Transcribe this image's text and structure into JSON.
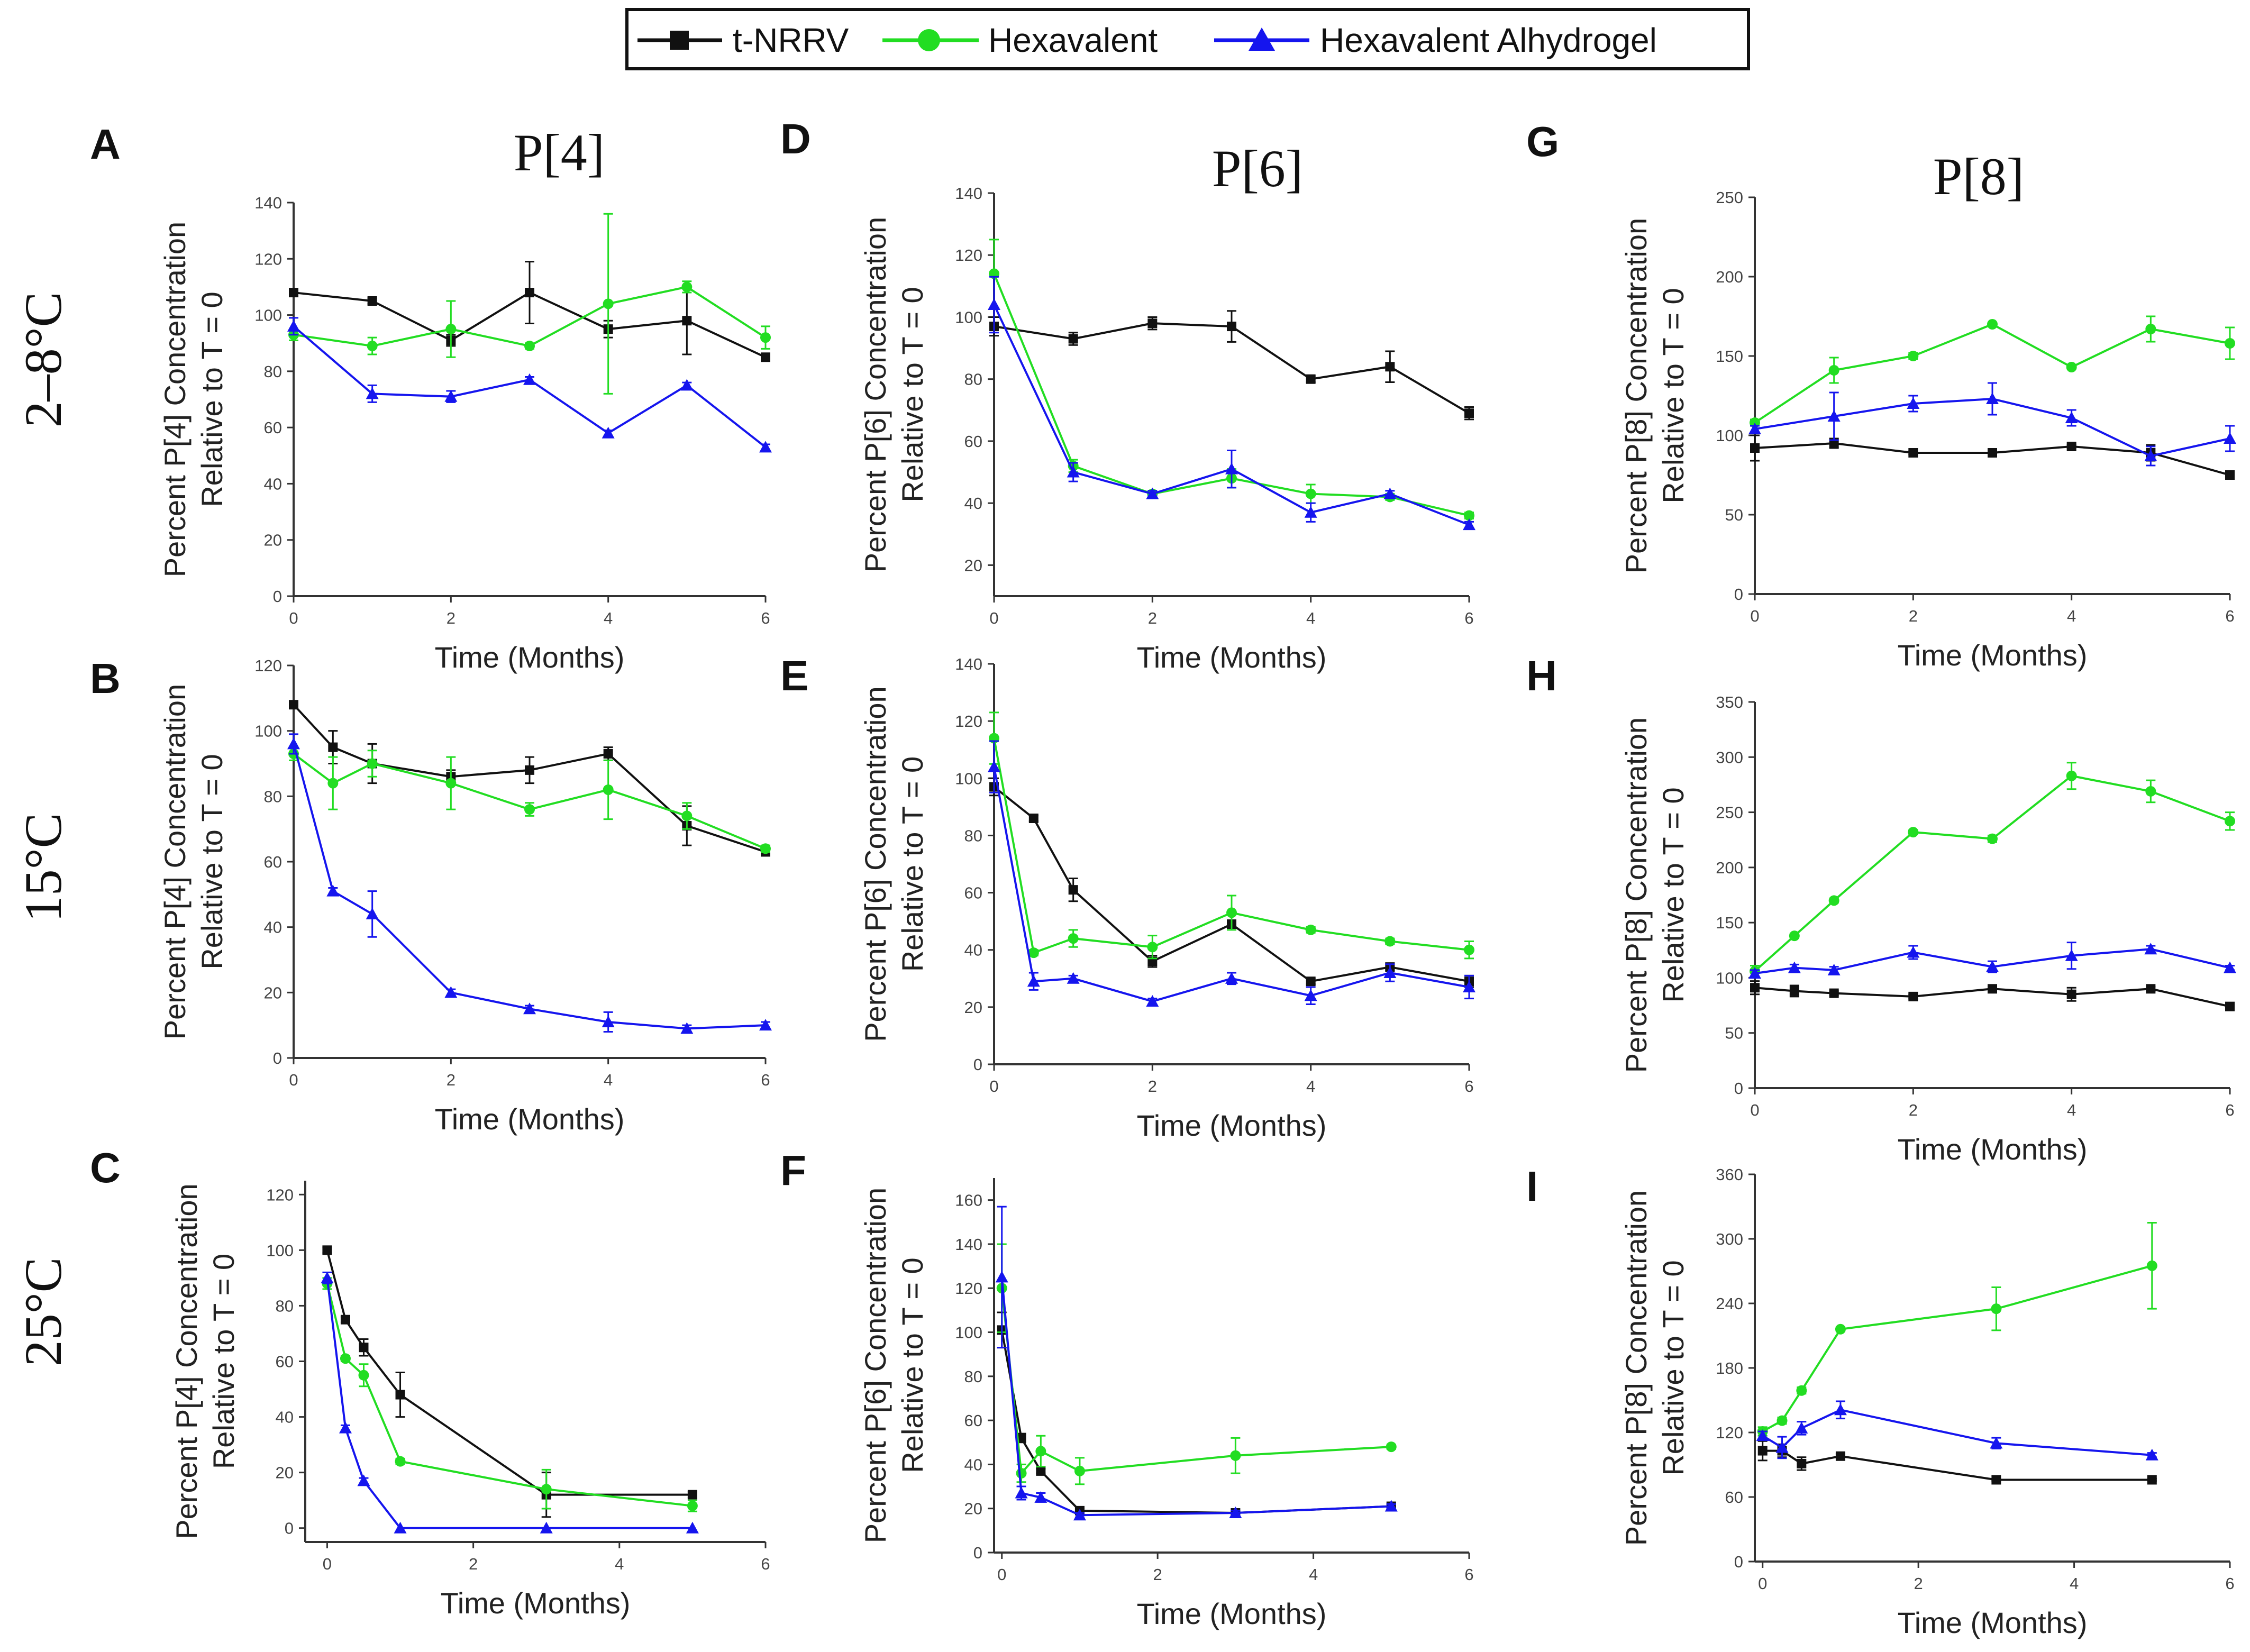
{
  "legend": {
    "items": [
      {
        "name": "t-NRRV",
        "color": "#111111",
        "marker": "square"
      },
      {
        "name": "Hexavalent",
        "color": "#22dd22",
        "marker": "circle"
      },
      {
        "name": "Hexavalent Alhydrogel",
        "color": "#1515ee",
        "marker": "triangle"
      }
    ]
  },
  "column_titles": [
    "P[4]",
    "P[6]",
    "P[8]"
  ],
  "row_labels": [
    "2–8°C",
    "15°C",
    "25°C"
  ],
  "chart_data": [
    {
      "panel": "A",
      "type": "line",
      "title": "P[4]",
      "xlabel": "Time (Months)",
      "ylabel_lines": [
        "Percent P[4] Concentration",
        "Relative to T = 0"
      ],
      "xlim": [
        0,
        6
      ],
      "xticks": [
        0,
        2,
        4,
        6
      ],
      "ylim": [
        0,
        140
      ],
      "yticks": [
        0,
        20,
        40,
        60,
        80,
        100,
        120,
        140
      ],
      "series": [
        {
          "name": "t-NRRV",
          "x": [
            0,
            1,
            2,
            3,
            4,
            5,
            6
          ],
          "y": [
            108,
            105,
            91,
            108,
            95,
            98,
            85
          ],
          "err": [
            1,
            1,
            2,
            11,
            3,
            12,
            1
          ]
        },
        {
          "name": "Hexavalent",
          "x": [
            0,
            1,
            2,
            3,
            4,
            5,
            6
          ],
          "y": [
            93,
            89,
            95,
            89,
            104,
            110,
            92
          ],
          "err": [
            2,
            3,
            10,
            1,
            32,
            2,
            4
          ]
        },
        {
          "name": "Hexavalent Alhydrogel",
          "x": [
            0,
            1,
            2,
            3,
            4,
            5,
            6
          ],
          "y": [
            96,
            72,
            71,
            77,
            58,
            75,
            53
          ],
          "err": [
            3,
            3,
            2,
            1,
            1,
            1,
            1
          ]
        }
      ]
    },
    {
      "panel": "B",
      "type": "line",
      "xlabel": "Time (Months)",
      "ylabel_lines": [
        "Percent P[4] Concentration",
        "Relative to T = 0"
      ],
      "xlim": [
        0,
        6
      ],
      "xticks": [
        0,
        2,
        4,
        6
      ],
      "ylim": [
        0,
        120
      ],
      "yticks": [
        0,
        20,
        40,
        60,
        80,
        100,
        120
      ],
      "series": [
        {
          "name": "t-NRRV",
          "x": [
            0,
            0.5,
            1,
            2,
            3,
            4,
            5,
            6
          ],
          "y": [
            108,
            95,
            90,
            86,
            88,
            93,
            71,
            63
          ],
          "err": [
            1,
            5,
            6,
            2,
            4,
            2,
            6,
            1
          ]
        },
        {
          "name": "Hexavalent",
          "x": [
            0,
            0.5,
            1,
            2,
            3,
            4,
            5,
            6
          ],
          "y": [
            93,
            84,
            90,
            84,
            76,
            82,
            74,
            64
          ],
          "err": [
            2,
            8,
            4,
            8,
            2,
            9,
            4,
            1
          ]
        },
        {
          "name": "Hexavalent Alhydrogel",
          "x": [
            0,
            0.5,
            1,
            2,
            3,
            4,
            5,
            6
          ],
          "y": [
            96,
            51,
            44,
            20,
            15,
            11,
            9,
            10
          ],
          "err": [
            3,
            1,
            7,
            1,
            1,
            3,
            1,
            1
          ]
        }
      ]
    },
    {
      "panel": "C",
      "type": "line",
      "xlabel": "Time (Months)",
      "ylabel_lines": [
        "Percent P[4] Concentration",
        "Relative to T = 0"
      ],
      "xlim": [
        -0.3,
        6
      ],
      "xticks": [
        0,
        2,
        4,
        6
      ],
      "ylim": [
        -5,
        125
      ],
      "yticks": [
        0,
        20,
        40,
        60,
        80,
        100,
        120
      ],
      "series": [
        {
          "name": "t-NRRV",
          "x": [
            0,
            0.25,
            0.5,
            1,
            3,
            5
          ],
          "y": [
            100,
            75,
            65,
            48,
            12,
            12
          ],
          "err": [
            1,
            1,
            3,
            8,
            8,
            1
          ]
        },
        {
          "name": "Hexavalent",
          "x": [
            0,
            0.25,
            0.5,
            1,
            3,
            5
          ],
          "y": [
            88,
            61,
            55,
            24,
            14,
            8
          ],
          "err": [
            2,
            1,
            4,
            1,
            7,
            2
          ]
        },
        {
          "name": "Hexavalent Alhydrogel",
          "x": [
            0,
            0.25,
            0.5,
            1,
            3,
            5
          ],
          "y": [
            90,
            36,
            17,
            0,
            0,
            0
          ],
          "err": [
            2,
            1,
            1,
            0,
            0,
            0
          ]
        }
      ]
    },
    {
      "panel": "D",
      "type": "line",
      "title": "P[6]",
      "xlabel": "Time (Months)",
      "ylabel_lines": [
        "Percent P[6] Concentration",
        "Relative to T = 0"
      ],
      "xlim": [
        0,
        6
      ],
      "xticks": [
        0,
        2,
        4,
        6
      ],
      "ylim": [
        10,
        140
      ],
      "yticks": [
        20,
        40,
        60,
        80,
        100,
        120,
        140
      ],
      "series": [
        {
          "name": "t-NRRV",
          "x": [
            0,
            1,
            2,
            3,
            4,
            5,
            6
          ],
          "y": [
            97,
            93,
            98,
            97,
            80,
            84,
            69
          ],
          "err": [
            3,
            2,
            2,
            5,
            1,
            5,
            2
          ]
        },
        {
          "name": "Hexavalent",
          "x": [
            0,
            1,
            2,
            3,
            4,
            5,
            6
          ],
          "y": [
            114,
            52,
            43,
            48,
            43,
            42,
            36
          ],
          "err": [
            11,
            2,
            1,
            3,
            3,
            1,
            1
          ]
        },
        {
          "name": "Hexavalent Alhydrogel",
          "x": [
            0,
            1,
            2,
            3,
            4,
            5,
            6
          ],
          "y": [
            104,
            50,
            43,
            51,
            37,
            43,
            33
          ],
          "err": [
            9,
            3,
            1,
            6,
            3,
            1,
            1
          ]
        }
      ]
    },
    {
      "panel": "E",
      "type": "line",
      "xlabel": "Time (Months)",
      "ylabel_lines": [
        "Percent P[6] Concentration",
        "Relative to T = 0"
      ],
      "xlim": [
        0,
        6
      ],
      "xticks": [
        0,
        2,
        4,
        6
      ],
      "ylim": [
        0,
        140
      ],
      "yticks": [
        0,
        20,
        40,
        60,
        80,
        100,
        120,
        140
      ],
      "series": [
        {
          "name": "t-NRRV",
          "x": [
            0,
            0.5,
            1,
            2,
            3,
            4,
            5,
            6
          ],
          "y": [
            97,
            86,
            61,
            36,
            49,
            29,
            34,
            29
          ],
          "err": [
            3,
            1,
            4,
            2,
            1,
            1,
            1,
            2
          ]
        },
        {
          "name": "Hexavalent",
          "x": [
            0,
            0.5,
            1,
            2,
            3,
            4,
            5,
            6
          ],
          "y": [
            114,
            39,
            44,
            41,
            53,
            47,
            43,
            40
          ],
          "err": [
            9,
            1,
            3,
            4,
            6,
            1,
            1,
            3
          ]
        },
        {
          "name": "Hexavalent Alhydrogel",
          "x": [
            0,
            0.5,
            1,
            2,
            3,
            4,
            5,
            6
          ],
          "y": [
            104,
            29,
            30,
            22,
            30,
            24,
            32,
            27
          ],
          "err": [
            9,
            3,
            1,
            1,
            2,
            3,
            3,
            4
          ]
        }
      ]
    },
    {
      "panel": "F",
      "type": "line",
      "xlabel": "Time (Months)",
      "ylabel_lines": [
        "Percent P[6] Concentration",
        "Relative to T = 0"
      ],
      "xlim": [
        -0.1,
        6
      ],
      "xticks": [
        0,
        2,
        4,
        6
      ],
      "ylim": [
        0,
        170
      ],
      "yticks": [
        0,
        20,
        40,
        60,
        80,
        100,
        120,
        140,
        160
      ],
      "series": [
        {
          "name": "t-NRRV",
          "x": [
            0,
            0.25,
            0.5,
            1,
            3,
            5
          ],
          "y": [
            101,
            52,
            37,
            19,
            18,
            21
          ],
          "err": [
            8,
            2,
            1,
            1,
            1,
            1
          ]
        },
        {
          "name": "Hexavalent",
          "x": [
            0,
            0.25,
            0.5,
            1,
            3,
            5
          ],
          "y": [
            120,
            36,
            46,
            37,
            44,
            48
          ],
          "err": [
            20,
            4,
            7,
            6,
            8,
            1
          ]
        },
        {
          "name": "Hexavalent Alhydrogel",
          "x": [
            0,
            0.25,
            0.5,
            1,
            3,
            5
          ],
          "y": [
            125,
            27,
            25,
            17,
            18,
            21
          ],
          "err": [
            32,
            3,
            2,
            1,
            1,
            1
          ]
        }
      ]
    },
    {
      "panel": "G",
      "type": "line",
      "title": "P[8]",
      "xlabel": "Time (Months)",
      "ylabel_lines": [
        "Percent P[8] Concentration",
        "Relative to T = 0"
      ],
      "xlim": [
        0,
        6
      ],
      "xticks": [
        0,
        2,
        4,
        6
      ],
      "ylim": [
        0,
        250
      ],
      "yticks": [
        0,
        50,
        100,
        150,
        200,
        250
      ],
      "series": [
        {
          "name": "t-NRRV",
          "x": [
            0,
            1,
            2,
            3,
            4,
            5,
            6
          ],
          "y": [
            92,
            95,
            89,
            89,
            93,
            89,
            75
          ],
          "err": [
            8,
            3,
            1,
            1,
            1,
            5,
            1
          ]
        },
        {
          "name": "Hexavalent",
          "x": [
            0,
            1,
            2,
            3,
            4,
            5,
            6
          ],
          "y": [
            108,
            141,
            150,
            170,
            143,
            167,
            158
          ],
          "err": [
            2,
            8,
            2,
            1,
            1,
            8,
            10
          ]
        },
        {
          "name": "Hexavalent Alhydrogel",
          "x": [
            0,
            1,
            2,
            3,
            4,
            5,
            6
          ],
          "y": [
            104,
            112,
            120,
            123,
            111,
            87,
            98
          ],
          "err": [
            2,
            15,
            5,
            10,
            5,
            6,
            8
          ]
        }
      ]
    },
    {
      "panel": "H",
      "type": "line",
      "xlabel": "Time (Months)",
      "ylabel_lines": [
        "Percent P[8] Concentration",
        "Relative to T = 0"
      ],
      "xlim": [
        0,
        6
      ],
      "xticks": [
        0,
        2,
        4,
        6
      ],
      "ylim": [
        0,
        350
      ],
      "yticks": [
        0,
        50,
        100,
        150,
        200,
        250,
        300,
        350
      ],
      "series": [
        {
          "name": "t-NRRV",
          "x": [
            0,
            0.5,
            1,
            2,
            3,
            4,
            5,
            6
          ],
          "y": [
            91,
            88,
            86,
            83,
            90,
            85,
            90,
            74
          ],
          "err": [
            6,
            5,
            2,
            2,
            2,
            6,
            2,
            2
          ]
        },
        {
          "name": "Hexavalent",
          "x": [
            0,
            0.5,
            1,
            2,
            3,
            4,
            5,
            6
          ],
          "y": [
            106,
            138,
            170,
            232,
            226,
            283,
            269,
            242
          ],
          "err": [
            5,
            2,
            2,
            2,
            3,
            12,
            10,
            8
          ]
        },
        {
          "name": "Hexavalent Alhydrogel",
          "x": [
            0,
            0.5,
            1,
            2,
            3,
            4,
            5,
            6
          ],
          "y": [
            104,
            109,
            107,
            123,
            110,
            120,
            126,
            109
          ],
          "err": [
            3,
            3,
            3,
            6,
            5,
            12,
            3,
            2
          ]
        }
      ]
    },
    {
      "panel": "I",
      "type": "line",
      "xlabel": "Time (Months)",
      "ylabel_lines": [
        "Percent P[8] Concentration",
        "Relative to T = 0"
      ],
      "xlim": [
        -0.1,
        6
      ],
      "xticks": [
        0,
        2,
        4,
        6
      ],
      "ylim": [
        0,
        360
      ],
      "yticks": [
        0,
        60,
        120,
        180,
        240,
        300,
        360
      ],
      "series": [
        {
          "name": "t-NRRV",
          "x": [
            0,
            0.25,
            0.5,
            1,
            3,
            5
          ],
          "y": [
            103,
            103,
            91,
            98,
            76,
            76
          ],
          "err": [
            9,
            6,
            6,
            2,
            1,
            1
          ]
        },
        {
          "name": "Hexavalent",
          "x": [
            0,
            0.25,
            0.5,
            1,
            3,
            5
          ],
          "y": [
            121,
            131,
            159,
            216,
            235,
            275
          ],
          "err": [
            4,
            3,
            3,
            2,
            20,
            40
          ]
        },
        {
          "name": "Hexavalent Alhydrogel",
          "x": [
            0,
            0.25,
            0.5,
            1,
            3,
            5
          ],
          "y": [
            117,
            106,
            124,
            141,
            110,
            99
          ],
          "err": [
            4,
            10,
            6,
            8,
            5,
            2
          ]
        }
      ]
    }
  ]
}
